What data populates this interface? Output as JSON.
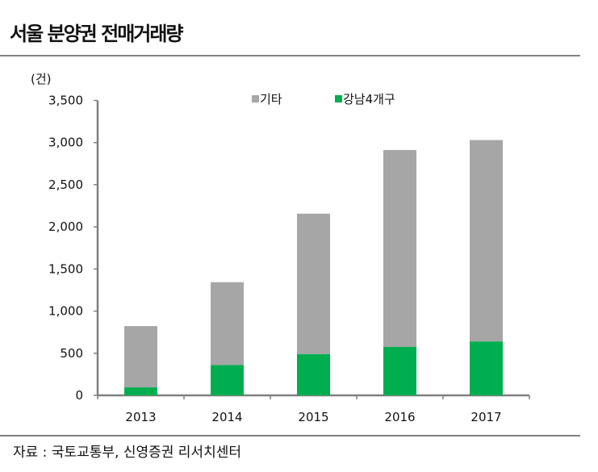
{
  "title": "서울 분양권 전매거래량",
  "source": "자료 : 국토교통부, 신영증권 리서치센터",
  "chart_data": {
    "type": "bar",
    "stacked": true,
    "title": "서울 분양권 전매거래량",
    "ylabel": "(건)",
    "xlabel": "",
    "ylim": [
      0,
      3500
    ],
    "yticks": [
      0,
      500,
      1000,
      1500,
      2000,
      2500,
      3000,
      3500
    ],
    "ytick_labels": [
      "0",
      "500",
      "1,000",
      "1,500",
      "2,000",
      "2,500",
      "3,000",
      "3,500"
    ],
    "categories": [
      "2013",
      "2014",
      "2015",
      "2016",
      "2017"
    ],
    "series": [
      {
        "name": "강남4개구",
        "color": "#00ae4f",
        "values": [
          95,
          360,
          490,
          575,
          640
        ]
      },
      {
        "name": "기타",
        "color": "#a6a6a6",
        "values": [
          727,
          983,
          1666,
          2337,
          2390
        ]
      }
    ],
    "legend": [
      "기타",
      "강남4개구"
    ],
    "legend_placement": "top-center",
    "grid": false
  }
}
